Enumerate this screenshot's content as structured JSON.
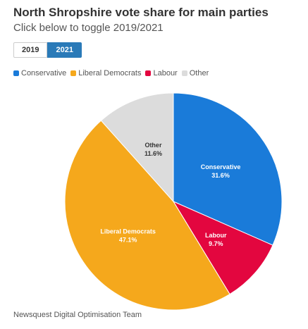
{
  "header": {
    "title": "North Shropshire vote share for main parties",
    "subtitle": "Click below to toggle 2019/2021"
  },
  "toggle": {
    "options": [
      "2019",
      "2021"
    ],
    "selected": "2021"
  },
  "legend": {
    "items": [
      "Conservative",
      "Liberal Democrats",
      "Labour",
      "Other"
    ]
  },
  "chart_data": {
    "type": "pie",
    "categories": [
      "Conservative",
      "Labour",
      "Liberal Democrats",
      "Other"
    ],
    "values": [
      31.6,
      9.7,
      47.1,
      11.6
    ],
    "labels": [
      "31.6%",
      "9.7%",
      "47.1%",
      "11.6%"
    ],
    "colors": [
      "#1a7bd9",
      "#e3063f",
      "#f5a81c",
      "#dcdcdc"
    ],
    "label_colors": [
      "#ffffff",
      "#ffffff",
      "#ffffff",
      "#333333"
    ]
  },
  "footer": {
    "credit": "Newsquest Digital Optimisation Team"
  }
}
